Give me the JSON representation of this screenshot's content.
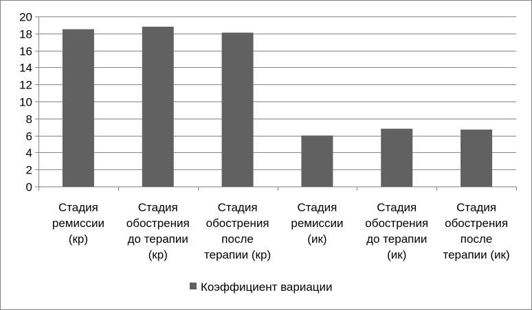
{
  "chart_data": {
    "type": "bar",
    "categories": [
      [
        "Стадия",
        "ремиссии",
        "(кр)"
      ],
      [
        "Стадия",
        "обострения",
        "до терапии",
        "(кр)"
      ],
      [
        "Стадия",
        "обострения",
        "после",
        "терапии (кр)"
      ],
      [
        "Стадия",
        "ремиссии",
        "(ик)"
      ],
      [
        "Стадия",
        "обострения",
        "до терапии",
        "(ик)"
      ],
      [
        "Стадия",
        "обострения",
        "после",
        "терапии (ик)"
      ]
    ],
    "series": [
      {
        "name": "Коэффициент вариации",
        "values": [
          18.5,
          18.8,
          18.1,
          6.0,
          6.8,
          6.7
        ],
        "color": "#616161"
      }
    ],
    "ylim": [
      0,
      20
    ],
    "yticks": [
      0,
      2,
      4,
      6,
      8,
      10,
      12,
      14,
      16,
      18,
      20
    ],
    "grid": true,
    "legend_position": "bottom",
    "title": "",
    "xlabel": "",
    "ylabel": ""
  }
}
